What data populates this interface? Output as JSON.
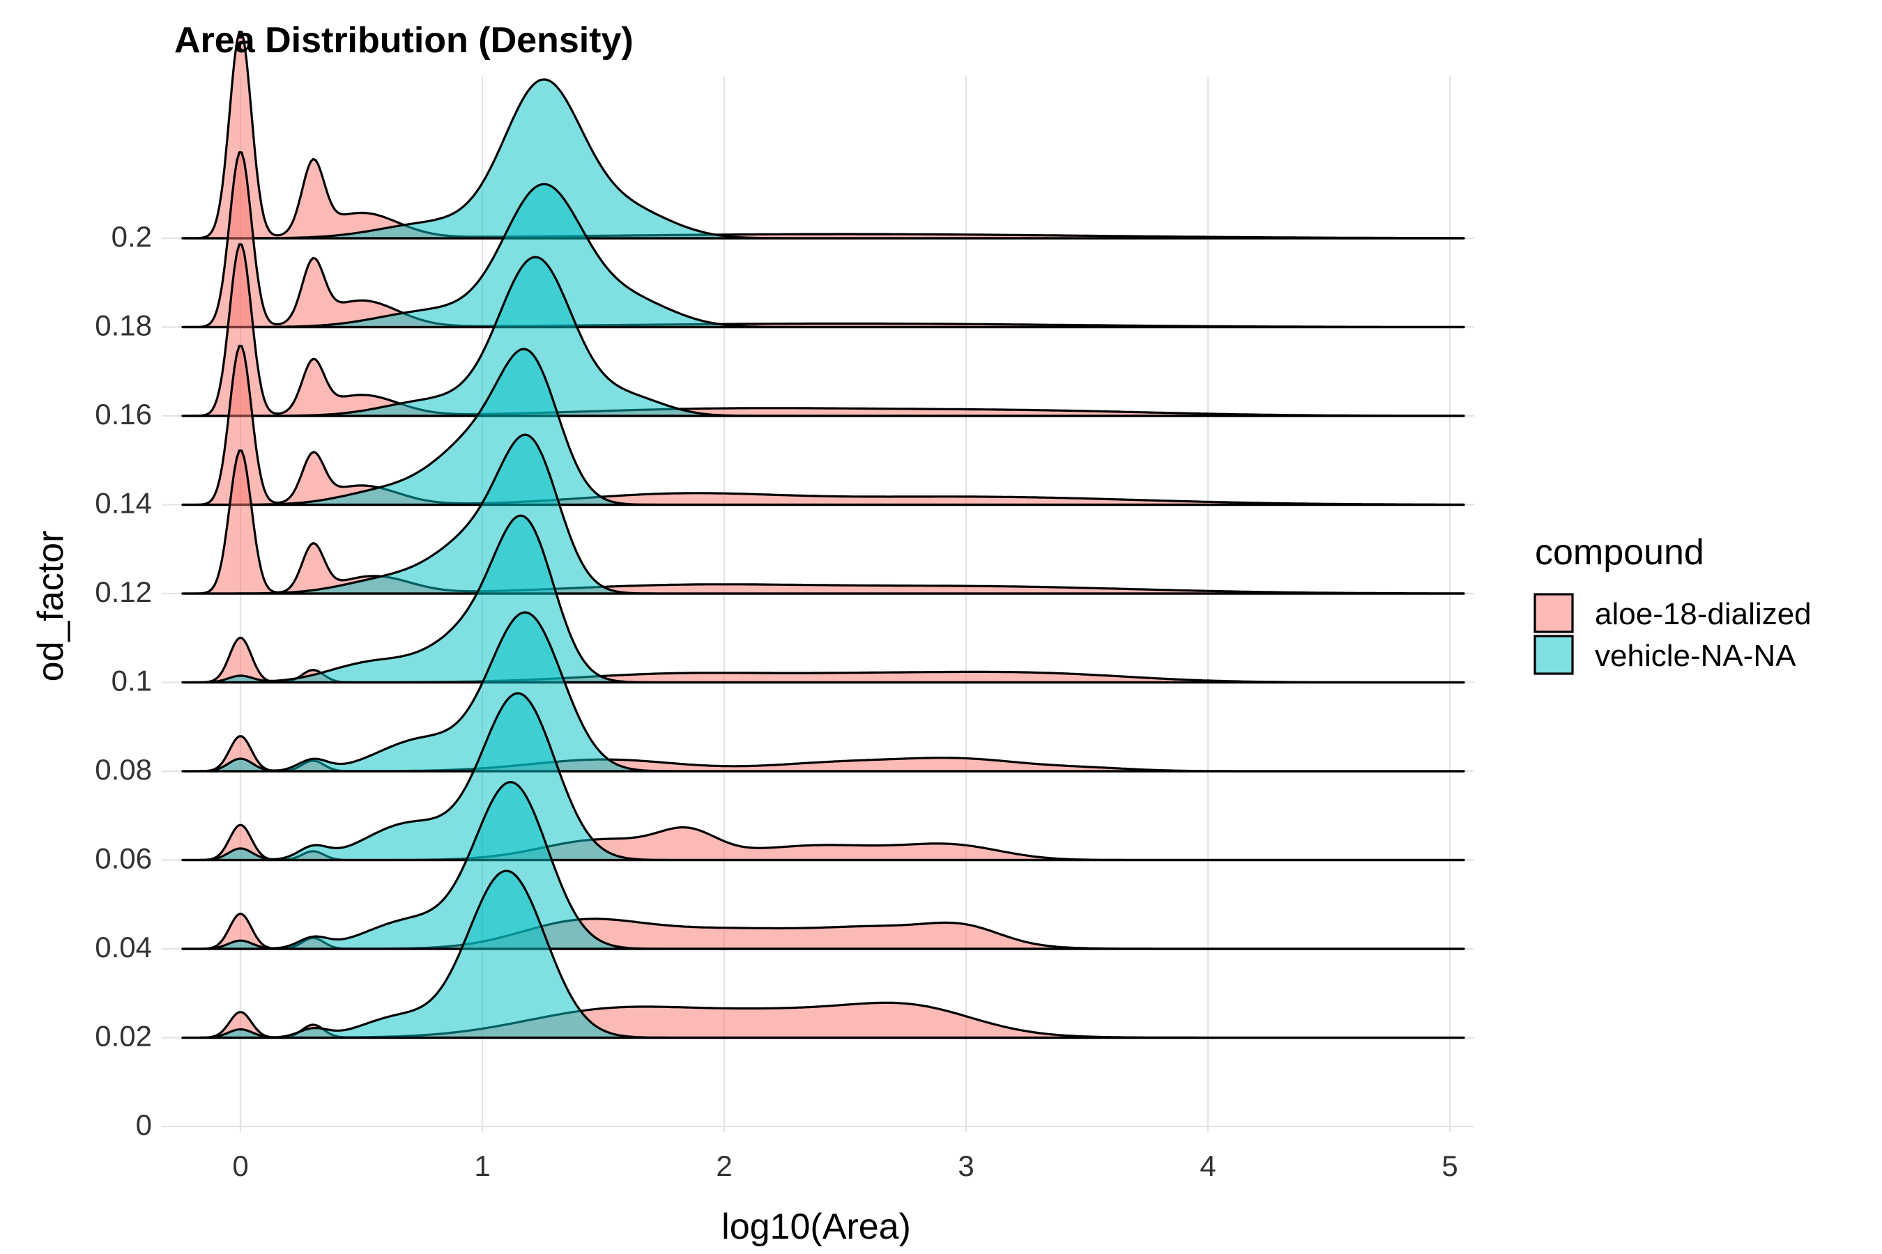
{
  "chart_data": {
    "type": "ridgeline",
    "title": "Area Distribution (Density)",
    "xlabel": "log10(Area)",
    "ylabel": "od_factor",
    "xlim": [
      -0.32,
      5.1
    ],
    "x_ticks": [
      "0",
      "1",
      "2",
      "3",
      "4",
      "5"
    ],
    "y_ticks": [
      "0",
      "0.02",
      "0.04",
      "0.06",
      "0.08",
      "0.1",
      "0.12",
      "0.14",
      "0.16",
      "0.18",
      "0.2"
    ],
    "y_values": [
      0,
      0.02,
      0.04,
      0.06,
      0.08,
      0.1,
      0.12,
      0.14,
      0.16,
      0.18,
      0.2
    ],
    "ylim": [
      0,
      0.2
    ],
    "grid": "major x gridlines and ridge baselines",
    "legend": {
      "title": "compound",
      "position": "right",
      "entries": [
        {
          "name": "aloe-18-dialized",
          "color": "#F8766D"
        },
        {
          "name": "vehicle-NA-NA",
          "color": "#00BFC4"
        }
      ]
    },
    "series": [
      {
        "name": "aloe-18-dialized",
        "color": "#F8766D",
        "ridges": [
          {
            "od_factor": 0.02,
            "height": 0.22,
            "peaks": [
              [
                0.0,
                0.3,
                0.045
              ],
              [
                0.3,
                0.15,
                0.045
              ],
              [
                1.5,
                0.28,
                0.35
              ],
              [
                2.3,
                0.3,
                0.45
              ],
              [
                2.8,
                0.22,
                0.25
              ]
            ]
          },
          {
            "od_factor": 0.04,
            "height": 0.22,
            "peaks": [
              [
                0.0,
                0.42,
                0.045
              ],
              [
                0.3,
                0.13,
                0.045
              ],
              [
                1.4,
                0.3,
                0.25
              ],
              [
                2.0,
                0.22,
                0.35
              ],
              [
                2.7,
                0.23,
                0.3
              ],
              [
                3.0,
                0.15,
                0.15
              ]
            ]
          },
          {
            "od_factor": 0.06,
            "height": 0.22,
            "peaks": [
              [
                0.0,
                0.48,
                0.045
              ],
              [
                0.3,
                0.12,
                0.045
              ],
              [
                1.5,
                0.28,
                0.25
              ],
              [
                1.85,
                0.3,
                0.12
              ],
              [
                2.4,
                0.2,
                0.3
              ],
              [
                2.95,
                0.18,
                0.2
              ]
            ]
          },
          {
            "od_factor": 0.08,
            "height": 0.22,
            "peaks": [
              [
                0.0,
                0.6,
                0.045
              ],
              [
                0.3,
                0.18,
                0.045
              ],
              [
                1.5,
                0.2,
                0.3
              ],
              [
                2.5,
                0.15,
                0.3
              ],
              [
                3.0,
                0.18,
                0.25
              ],
              [
                3.5,
                0.05,
                0.2
              ]
            ]
          },
          {
            "od_factor": 0.1,
            "height": 0.28,
            "peaks": [
              [
                0.0,
                0.65,
                0.045
              ],
              [
                0.3,
                0.18,
                0.045
              ],
              [
                1.8,
                0.12,
                0.4
              ],
              [
                2.6,
                0.1,
                0.4
              ],
              [
                3.3,
                0.12,
                0.4
              ]
            ]
          },
          {
            "od_factor": 0.12,
            "height": 0.9,
            "peaks": [
              [
                0.0,
                1.0,
                0.045
              ],
              [
                0.3,
                0.32,
                0.045
              ],
              [
                0.55,
                0.12,
                0.15
              ],
              [
                1.8,
                0.05,
                0.5
              ],
              [
                3.0,
                0.05,
                0.7
              ]
            ]
          },
          {
            "od_factor": 0.14,
            "height": 1.0,
            "peaks": [
              [
                0.0,
                1.0,
                0.045
              ],
              [
                0.3,
                0.28,
                0.045
              ],
              [
                0.5,
                0.12,
                0.15
              ],
              [
                1.8,
                0.06,
                0.4
              ],
              [
                3.0,
                0.05,
                0.7
              ]
            ]
          },
          {
            "od_factor": 0.16,
            "height": 1.08,
            "peaks": [
              [
                0.0,
                1.0,
                0.045
              ],
              [
                0.3,
                0.28,
                0.045
              ],
              [
                0.5,
                0.12,
                0.15
              ],
              [
                2.0,
                0.04,
                0.6
              ],
              [
                3.2,
                0.03,
                0.6
              ]
            ]
          },
          {
            "od_factor": 0.18,
            "height": 1.1,
            "peaks": [
              [
                0.0,
                1.0,
                0.045
              ],
              [
                0.3,
                0.33,
                0.045
              ],
              [
                0.5,
                0.15,
                0.15
              ],
              [
                2.5,
                0.02,
                0.9
              ]
            ]
          },
          {
            "od_factor": 0.2,
            "height": 1.3,
            "peaks": [
              [
                0.0,
                1.0,
                0.045
              ],
              [
                0.3,
                0.33,
                0.045
              ],
              [
                0.5,
                0.12,
                0.15
              ],
              [
                2.5,
                0.02,
                1.0
              ]
            ]
          }
        ]
      },
      {
        "name": "vehicle-NA-NA",
        "color": "#00BFC4",
        "ridges": [
          {
            "od_factor": 0.02,
            "height": 1.05,
            "peaks": [
              [
                0.0,
                0.05,
                0.05
              ],
              [
                0.3,
                0.05,
                0.06
              ],
              [
                0.65,
                0.12,
                0.15
              ],
              [
                1.1,
                1.0,
                0.16
              ]
            ]
          },
          {
            "od_factor": 0.04,
            "height": 1.05,
            "peaks": [
              [
                0.0,
                0.05,
                0.05
              ],
              [
                0.3,
                0.06,
                0.06
              ],
              [
                0.7,
                0.17,
                0.18
              ],
              [
                1.12,
                1.0,
                0.15
              ]
            ]
          },
          {
            "od_factor": 0.06,
            "height": 1.05,
            "peaks": [
              [
                0.0,
                0.07,
                0.05
              ],
              [
                0.3,
                0.07,
                0.06
              ],
              [
                0.7,
                0.22,
                0.18
              ],
              [
                1.15,
                1.0,
                0.15
              ]
            ]
          },
          {
            "od_factor": 0.08,
            "height": 1.0,
            "peaks": [
              [
                0.0,
                0.08,
                0.05
              ],
              [
                0.3,
                0.07,
                0.06
              ],
              [
                0.75,
                0.2,
                0.18
              ],
              [
                1.18,
                1.0,
                0.15
              ]
            ]
          },
          {
            "od_factor": 0.1,
            "height": 1.05,
            "peaks": [
              [
                0.0,
                0.04,
                0.05
              ],
              [
                0.55,
                0.12,
                0.18
              ],
              [
                1.0,
                0.35,
                0.18
              ],
              [
                1.18,
                0.8,
                0.12
              ]
            ]
          },
          {
            "od_factor": 0.12,
            "height": 1.0,
            "peaks": [
              [
                0.6,
                0.08,
                0.18
              ],
              [
                1.0,
                0.35,
                0.18
              ],
              [
                1.2,
                0.75,
                0.12
              ]
            ]
          },
          {
            "od_factor": 0.14,
            "height": 0.98,
            "peaks": [
              [
                0.6,
                0.08,
                0.18
              ],
              [
                1.0,
                0.4,
                0.18
              ],
              [
                1.2,
                0.7,
                0.12
              ]
            ]
          },
          {
            "od_factor": 0.16,
            "height": 1.0,
            "peaks": [
              [
                0.8,
                0.1,
                0.2
              ],
              [
                1.22,
                1.0,
                0.15
              ],
              [
                1.6,
                0.12,
                0.15
              ]
            ]
          },
          {
            "od_factor": 0.18,
            "height": 0.9,
            "peaks": [
              [
                0.8,
                0.12,
                0.22
              ],
              [
                1.25,
                1.0,
                0.16
              ],
              [
                1.6,
                0.2,
                0.18
              ]
            ]
          },
          {
            "od_factor": 0.2,
            "height": 1.0,
            "peaks": [
              [
                0.8,
                0.1,
                0.22
              ],
              [
                1.25,
                1.0,
                0.16
              ],
              [
                1.6,
                0.18,
                0.18
              ]
            ]
          }
        ]
      }
    ]
  }
}
